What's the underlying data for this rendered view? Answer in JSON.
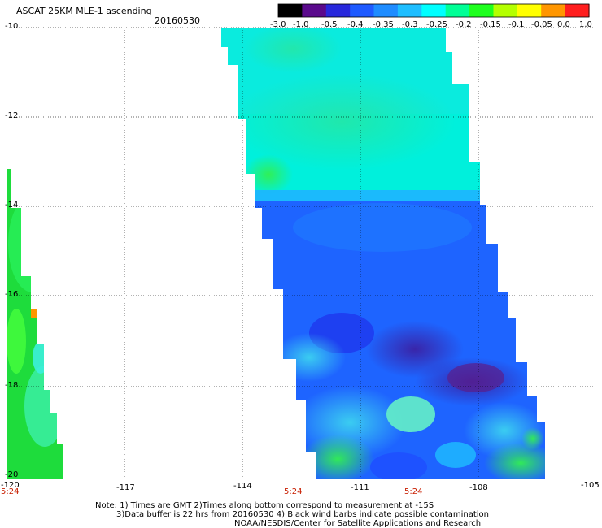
{
  "header": {
    "title": "ASCAT 25KM MLE-1 ascending",
    "date": "20160530"
  },
  "colorbar": {
    "tick_labels": [
      "-3.0",
      "-1.0",
      "-0.5",
      "-0.4",
      "-0.35",
      "-0.3",
      "-0.25",
      "-0.2",
      "-0.15",
      "-0.1",
      "-0.05",
      "0.0",
      "1.0"
    ],
    "colors": [
      "#000000",
      "#5a0a8c",
      "#2828dc",
      "#1e5aff",
      "#1e8cff",
      "#1ebeff",
      "#00ffff",
      "#00ff96",
      "#1eff1e",
      "#b4ff00",
      "#ffff00",
      "#ff9600",
      "#ff1e1e"
    ]
  },
  "map": {
    "lat_labels": [
      "-10",
      "-12",
      "-14",
      "-16",
      "-18",
      "-20"
    ],
    "lon_labels": [
      "-120",
      "-117",
      "-114",
      "-111",
      "-108",
      "-105"
    ],
    "time_labels": [
      "5:24",
      "5:24",
      "5:24"
    ]
  },
  "footer": {
    "line1": "Note: 1) Times are GMT 2)Times along bottom correspond to measurement at -15S",
    "line2": "3)Data buffer is 22 hrs from 20160530 4) Black wind barbs indicate possible contamination",
    "line3": "NOAA/NESDIS/Center for Satellite Applications and Research"
  }
}
